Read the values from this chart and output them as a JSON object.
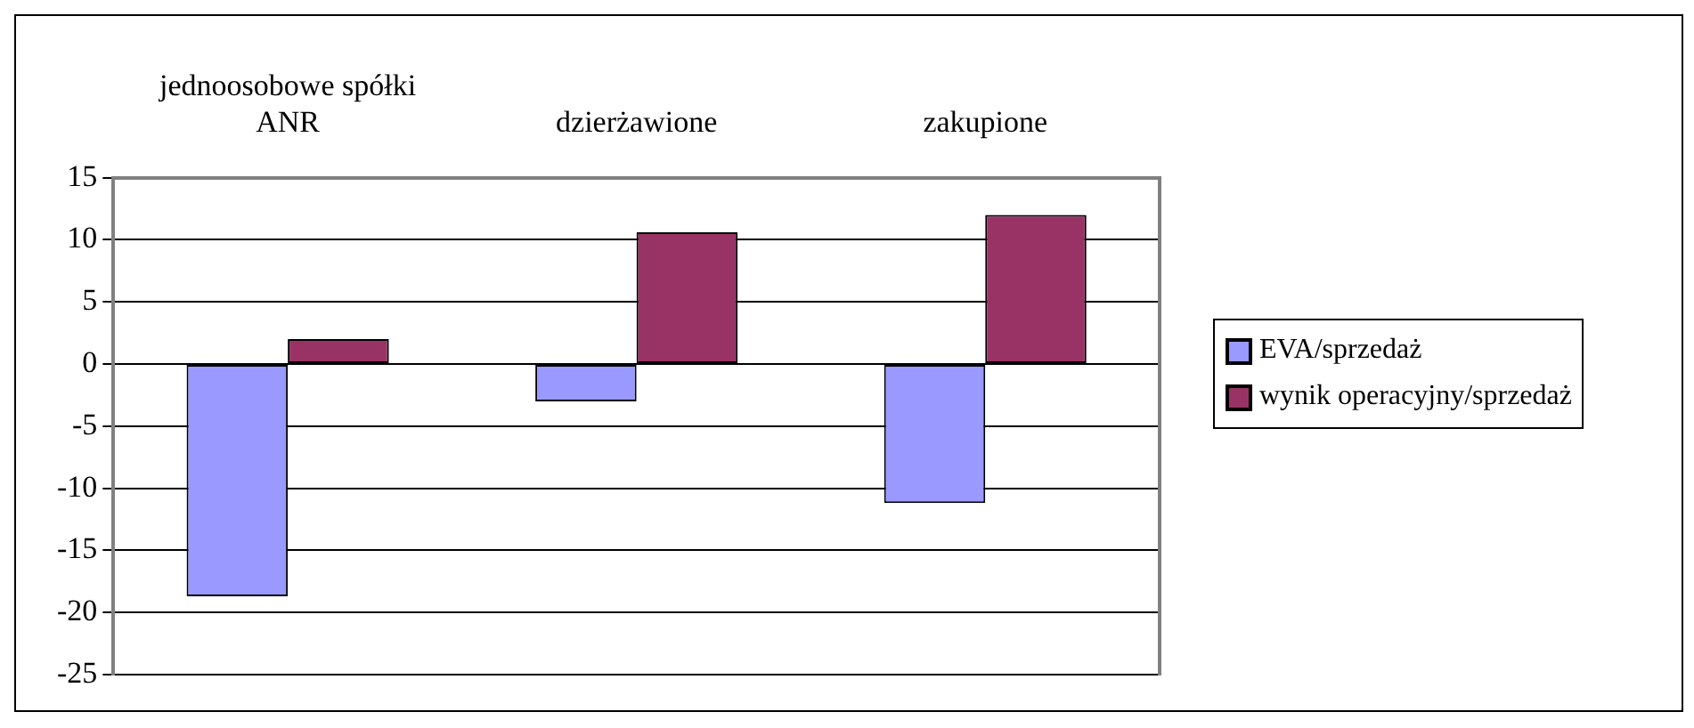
{
  "chart_data": {
    "type": "bar",
    "categories": [
      "jednoosobowe spółki ANR",
      "dzierżawione",
      "zakupione"
    ],
    "series": [
      {
        "name": "EVA/sprzedaż",
        "color": "#9999ff",
        "values": [
          -18.7,
          -3.0,
          -11.2
        ]
      },
      {
        "name": "wynik operacyjny/sprzedaż",
        "color": "#993366",
        "values": [
          2.0,
          10.6,
          12.0
        ]
      }
    ],
    "ylim": [
      -25,
      15
    ],
    "yticks": [
      -25,
      -20,
      -15,
      -10,
      -5,
      0,
      5,
      10,
      15
    ],
    "grid": "y",
    "legend": "right"
  }
}
